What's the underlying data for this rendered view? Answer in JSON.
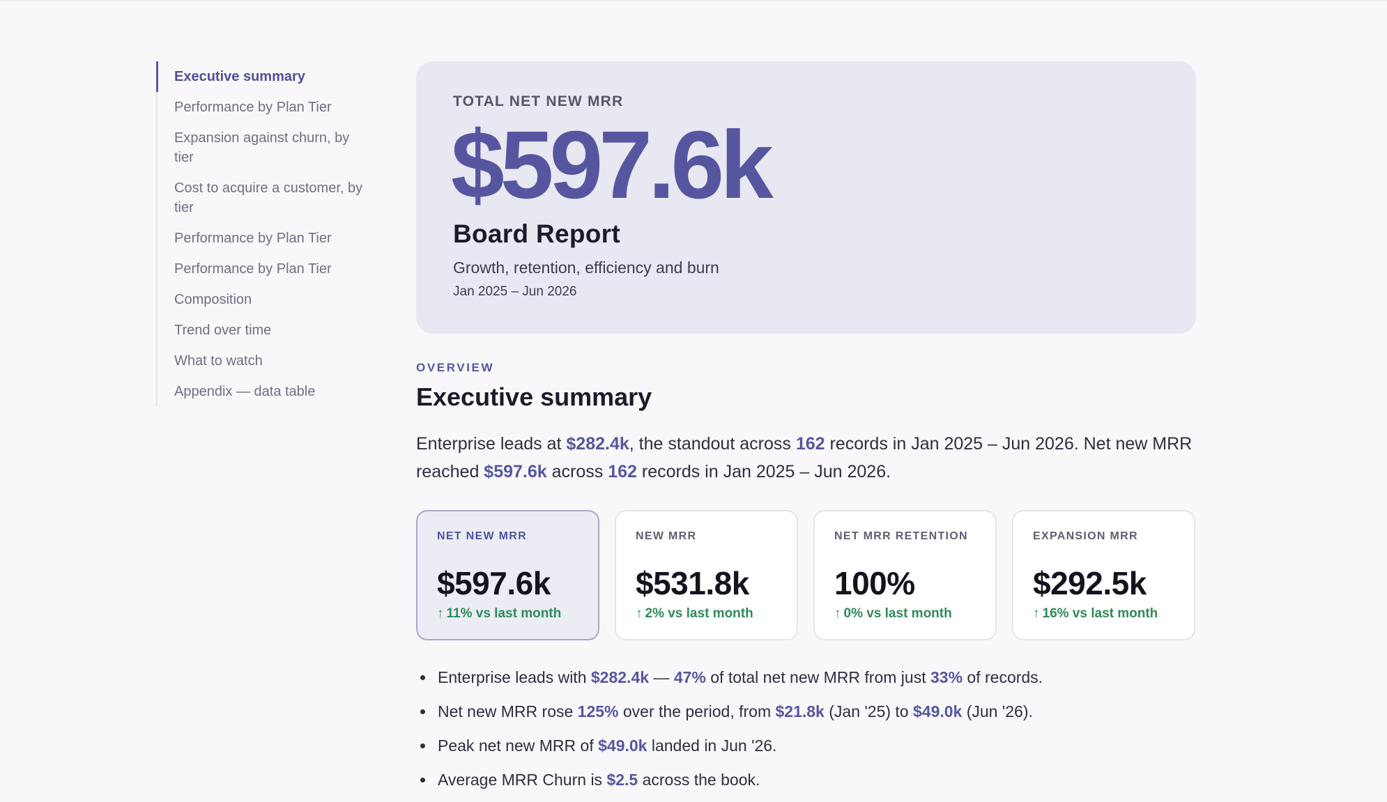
{
  "toc": {
    "items": [
      {
        "label": "Executive summary",
        "active": true
      },
      {
        "label": "Performance by Plan Tier"
      },
      {
        "label": "Expansion against churn, by tier"
      },
      {
        "label": "Cost to acquire a customer, by tier"
      },
      {
        "label": "Performance by Plan Tier"
      },
      {
        "label": "Performance by Plan Tier"
      },
      {
        "label": "Composition"
      },
      {
        "label": "Trend over time"
      },
      {
        "label": "What to watch"
      },
      {
        "label": "Appendix — data table"
      }
    ]
  },
  "hero": {
    "eyebrow": "TOTAL NET NEW MRR",
    "value": "$597.6k",
    "title": "Board Report",
    "subtitle": "Growth, retention, efficiency and burn",
    "range": "Jan 2025 – Jun 2026"
  },
  "overview": {
    "eyebrow": "OVERVIEW",
    "title": "Executive summary",
    "summary": {
      "t1": "Enterprise leads at ",
      "v1": "$282.4k",
      "t2": ", the standout across ",
      "v2": "162",
      "t3": " records in Jan 2025 – Jun 2026. Net new MRR reached ",
      "v3": "$597.6k",
      "t4": " across ",
      "v4": "162",
      "t5": " records in Jan 2025 – Jun 2026."
    }
  },
  "kpis": [
    {
      "label": "NET NEW MRR",
      "value": "$597.6k",
      "delta": "11% vs last month",
      "arrow": "↑"
    },
    {
      "label": "NEW MRR",
      "value": "$531.8k",
      "delta": "2% vs last month",
      "arrow": "↑"
    },
    {
      "label": "NET MRR RETENTION",
      "value": "100%",
      "delta": "0% vs last month",
      "arrow": "↑"
    },
    {
      "label": "EXPANSION MRR",
      "value": "$292.5k",
      "delta": "16% vs last month",
      "arrow": "↑"
    }
  ],
  "bullets": {
    "b1": {
      "t1": "Enterprise leads with ",
      "v1": "$282.4k",
      "t2": " — ",
      "v2": "47%",
      "t3": " of total net new MRR from just ",
      "v3": "33%",
      "t4": " of records."
    },
    "b2": {
      "t1": "Net new MRR rose ",
      "v1": "125%",
      "t2": " over the period, from ",
      "v2": "$21.8k",
      "t3": " (Jan '25) to ",
      "v3": "$49.0k",
      "t4": " (Jun '26)."
    },
    "b3": {
      "t1": "Peak net new MRR of ",
      "v1": "$49.0k",
      "t2": " landed in Jun '26."
    },
    "b4": {
      "t1": "Average MRR Churn is ",
      "v1": "$2.5",
      "t2": " across the book."
    }
  },
  "colors": {
    "accent": "#5656a0",
    "positive": "#2e8a58",
    "hero_bg": "#e8e8f2"
  }
}
